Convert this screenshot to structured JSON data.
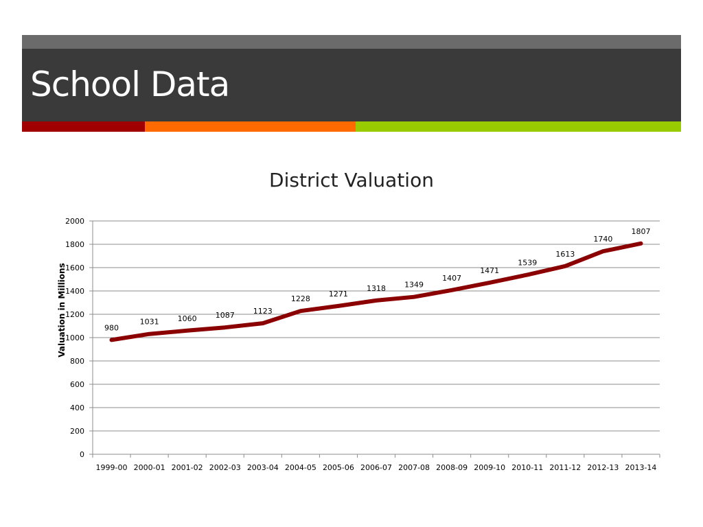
{
  "slide": {
    "title": "School Data",
    "accent_colors": [
      "#a00000",
      "#ff6a00",
      "#99cc00"
    ]
  },
  "chart_data": {
    "type": "line",
    "title": "District Valuation",
    "xlabel": "",
    "ylabel": "Valuation in Millions",
    "ylim": [
      0,
      2000
    ],
    "yticks": [
      0,
      200,
      400,
      600,
      800,
      1000,
      1200,
      1400,
      1600,
      1800,
      2000
    ],
    "grid": true,
    "legend": "none",
    "line_color": "#8b0000",
    "categories": [
      "1999-00",
      "2000-01",
      "2001-02",
      "2002-03",
      "2003-04",
      "2004-05",
      "2005-06",
      "2006-07",
      "2007-08",
      "2008-09",
      "2009-10",
      "2010-11",
      "2011-12",
      "2012-13",
      "2013-14"
    ],
    "series": [
      {
        "values": [
          980,
          1031,
          1060,
          1087,
          1123,
          1228,
          1271,
          1318,
          1349,
          1407,
          1471,
          1539,
          1613,
          1740,
          1807
        ]
      }
    ]
  }
}
